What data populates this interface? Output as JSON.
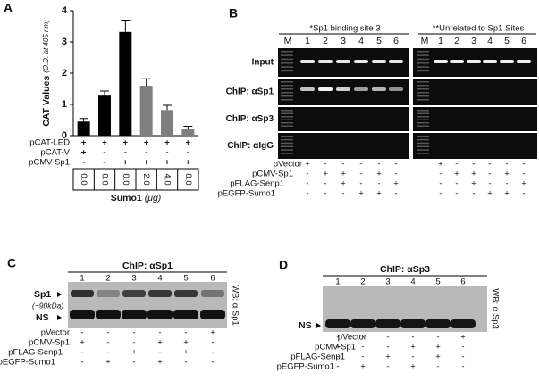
{
  "chart_data": {
    "type": "bar",
    "panel_label": "A",
    "y_label": "CAT Values",
    "y_label_sub": "(O.D. at 405 nm)",
    "values": [
      0.45,
      1.28,
      3.32,
      1.6,
      0.82,
      0.2
    ],
    "errors": [
      0.1,
      0.15,
      0.38,
      0.22,
      0.15,
      0.1
    ],
    "colors": [
      "#000000",
      "#000000",
      "#000000",
      "#7f7f7f",
      "#7f7f7f",
      "#7f7f7f"
    ],
    "ylim": [
      0,
      4
    ],
    "yticks": [
      0,
      1,
      2,
      3,
      4
    ],
    "conditions": [
      {
        "name": "pCAT-LED",
        "signs": [
          "+",
          "+",
          "+",
          "+",
          "+",
          "+"
        ]
      },
      {
        "name": "pCAT-V",
        "signs": [
          "+",
          "-",
          "-",
          "-",
          "-",
          "-"
        ]
      },
      {
        "name": "pCMV-Sp1",
        "signs": [
          "-",
          "-",
          "+",
          "+",
          "+",
          "+"
        ]
      }
    ],
    "sumo1_amounts": [
      "0.0",
      "0.0",
      "0.0",
      "2.0",
      "4.0",
      "8.0"
    ],
    "x_label": "Sumo1",
    "x_label_unit": "(μg)"
  },
  "panel_b": {
    "label": "B",
    "header_left": "*Sp1 binding site 3",
    "header_right": "**Unrelated to  Sp1 Sites",
    "lanes": [
      "M",
      "1",
      "2",
      "3",
      "4",
      "5",
      "6"
    ],
    "rows": [
      "Input",
      "ChIP: αSp1",
      "ChIP: αSp3",
      "ChIP: αIgG"
    ],
    "treatments": [
      {
        "name": "pVector",
        "signs": [
          "+",
          "-",
          "-",
          "-",
          "-",
          "-"
        ]
      },
      {
        "name": "pCMV-Sp1",
        "signs": [
          "-",
          "+",
          "+",
          "-",
          "+",
          "-"
        ]
      },
      {
        "name": "pFLAG-Senp1",
        "signs": [
          "-",
          "-",
          "+",
          "-",
          "-",
          "+"
        ]
      },
      {
        "name": "pEGFP-Sumo1",
        "signs": [
          "-",
          "-",
          "-",
          "+",
          "+",
          "-"
        ]
      }
    ]
  },
  "panel_c": {
    "label": "C",
    "title": "ChIP: αSp1",
    "lanes": [
      "1",
      "2",
      "3",
      "4",
      "5",
      "6"
    ],
    "band_sp1": "Sp1",
    "band_sp1_size": "(~90kDa)",
    "band_ns": "NS",
    "wb": "WB: α Sp1",
    "treatments": [
      {
        "name": "pVector",
        "signs": [
          "-",
          "-",
          "-",
          "-",
          "-",
          "+"
        ]
      },
      {
        "name": "pCMV-Sp1",
        "signs": [
          "+",
          "-",
          "-",
          "+",
          "+",
          "-"
        ]
      },
      {
        "name": "pFLAG-Senp1",
        "signs": [
          "-",
          "-",
          "+",
          "-",
          "+",
          "-"
        ]
      },
      {
        "name": "pEGFP-Sumo1",
        "signs": [
          "-",
          "+",
          "-",
          "+",
          "-",
          "-"
        ]
      }
    ]
  },
  "panel_d": {
    "label": "D",
    "title": "ChIP: αSp3",
    "lanes": [
      "1",
      "2",
      "3",
      "4",
      "5",
      "6"
    ],
    "band_ns": "NS",
    "wb": "WB: α Sp3",
    "treatments": [
      {
        "name": "pVector",
        "signs": [
          "-",
          "-",
          "-",
          "-",
          "-",
          "+"
        ]
      },
      {
        "name": "pCMV-Sp1",
        "signs": [
          "+",
          "-",
          "-",
          "+",
          "+",
          "-"
        ]
      },
      {
        "name": "pFLAG-Senp1",
        "signs": [
          "-",
          "-",
          "+",
          "-",
          "+",
          "-"
        ]
      },
      {
        "name": "pEGFP-Sumo1",
        "signs": [
          "-",
          "+",
          "-",
          "+",
          "-",
          "-"
        ]
      }
    ]
  }
}
